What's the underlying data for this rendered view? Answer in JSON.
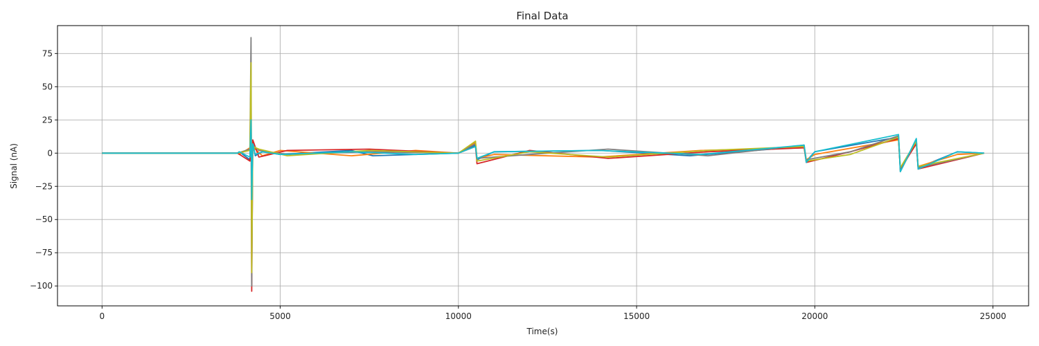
{
  "chart_data": {
    "type": "line",
    "title": "Final Data",
    "xlabel": "Time(s)",
    "ylabel": "Signal (nA)",
    "xlim": [
      -1250,
      26000
    ],
    "ylim": [
      -115,
      96
    ],
    "xticks": [
      0,
      5000,
      10000,
      15000,
      20000,
      25000
    ],
    "yticks": [
      -100,
      -75,
      -50,
      -25,
      0,
      25,
      50,
      75
    ],
    "grid": true,
    "series": [
      {
        "color": "#1f77b4",
        "x": [
          0,
          3800,
          3850,
          4150,
          4180,
          4200,
          4230,
          4300,
          4500,
          5000,
          7000,
          7600,
          10000,
          10480,
          10520,
          11000,
          14000,
          16500,
          19700,
          19760,
          20000,
          22350,
          22400,
          22850,
          22900,
          24000,
          24750
        ],
        "y": [
          0,
          0,
          1,
          -5,
          30,
          -40,
          8,
          -2,
          1,
          -1,
          2,
          -2,
          0,
          6,
          -5,
          1,
          2,
          -2,
          5,
          -6,
          1,
          12,
          -12,
          9,
          -11,
          1,
          0
        ]
      },
      {
        "color": "#ff7f0e",
        "x": [
          0,
          3800,
          3850,
          4150,
          4180,
          4200,
          4230,
          4300,
          4500,
          5000,
          7000,
          8800,
          10000,
          10480,
          10520,
          11000,
          13900,
          16800,
          19700,
          19760,
          20000,
          22350,
          22400,
          22850,
          22900,
          24000,
          24750
        ],
        "y": [
          0,
          0,
          -1,
          4,
          40,
          -55,
          6,
          3,
          -2,
          2,
          -2,
          2,
          0,
          8,
          -4,
          -1,
          -3,
          2,
          4,
          -5,
          -1,
          10,
          -13,
          8,
          -10,
          -1,
          0
        ]
      },
      {
        "color": "#d62728",
        "x": [
          0,
          3800,
          4150,
          4180,
          4200,
          4230,
          4400,
          5200,
          7500,
          10000,
          10480,
          10520,
          12000,
          14200,
          17000,
          19700,
          19760,
          21000,
          22350,
          22400,
          22850,
          22900,
          24750
        ],
        "y": [
          0,
          0,
          -6,
          30,
          -104,
          10,
          -3,
          2,
          3,
          0,
          5,
          -8,
          2,
          -4,
          1,
          4,
          -7,
          1,
          11,
          -12,
          7,
          -12,
          0
        ]
      },
      {
        "color": "#7f7f7f",
        "x": [
          0,
          3800,
          4150,
          4180,
          4200,
          4230,
          4400,
          5200,
          7500,
          10000,
          10480,
          10520,
          12000,
          14200,
          17000,
          19700,
          19760,
          21000,
          22350,
          22400,
          22850,
          22900,
          24750
        ],
        "y": [
          0,
          0,
          3,
          87,
          -100,
          6,
          2,
          -1,
          1,
          0,
          7,
          -4,
          -1,
          3,
          -2,
          6,
          -5,
          1,
          13,
          -14,
          10,
          -11,
          0
        ]
      },
      {
        "color": "#bcbd22",
        "x": [
          0,
          3800,
          4150,
          4180,
          4200,
          4230,
          4400,
          5200,
          7500,
          10000,
          10480,
          10520,
          12000,
          14200,
          17000,
          19700,
          19760,
          21000,
          22350,
          22400,
          22850,
          22900,
          24750
        ],
        "y": [
          0,
          0,
          2,
          68,
          -90,
          5,
          3,
          -2,
          2,
          0,
          9,
          -6,
          1,
          -3,
          2,
          5,
          -6,
          -1,
          12,
          -11,
          9,
          -10,
          0
        ]
      },
      {
        "color": "#17becf",
        "x": [
          0,
          3800,
          3850,
          4150,
          4180,
          4200,
          4230,
          4300,
          4500,
          5000,
          7000,
          8800,
          10000,
          10480,
          10520,
          11000,
          13900,
          16800,
          19700,
          19760,
          20000,
          22350,
          22400,
          22850,
          22900,
          24000,
          24750
        ],
        "y": [
          0,
          0,
          1,
          -3,
          25,
          -35,
          7,
          -1,
          1,
          -1,
          1,
          -1,
          0,
          5,
          -4,
          1,
          2,
          -1,
          6,
          -7,
          1,
          14,
          -14,
          11,
          -12,
          1,
          0
        ]
      }
    ]
  }
}
